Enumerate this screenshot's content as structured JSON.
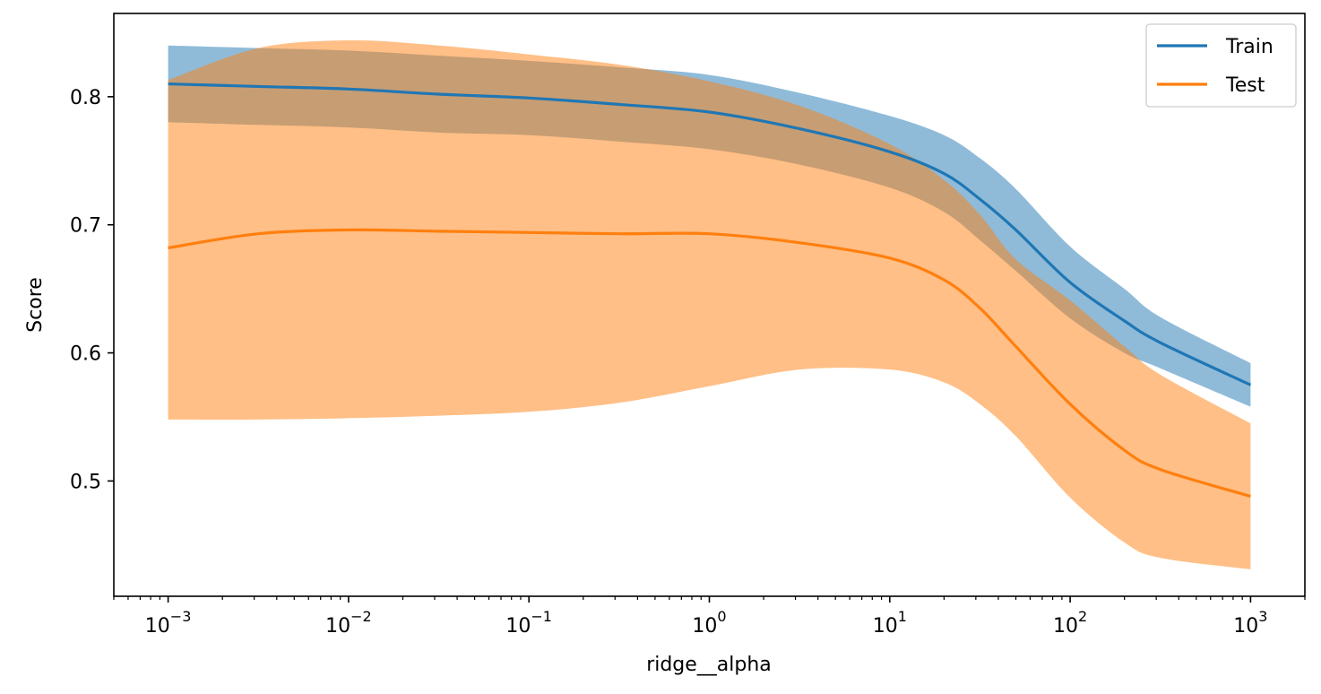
{
  "chart_data": {
    "type": "line",
    "title": "",
    "xlabel": "ridge__alpha",
    "ylabel": "Score",
    "xscale": "log",
    "xlim": [
      0.0005,
      2000
    ],
    "ylim": [
      0.41,
      0.865
    ],
    "x_ticks": [
      {
        "value": 0.001,
        "base": "10",
        "exp": "−3"
      },
      {
        "value": 0.01,
        "base": "10",
        "exp": "−2"
      },
      {
        "value": 0.1,
        "base": "10",
        "exp": "−1"
      },
      {
        "value": 1,
        "base": "10",
        "exp": "0"
      },
      {
        "value": 10,
        "base": "10",
        "exp": "1"
      },
      {
        "value": 100,
        "base": "10",
        "exp": "2"
      },
      {
        "value": 1000,
        "base": "10",
        "exp": "3"
      }
    ],
    "y_ticks": [
      {
        "value": 0.5,
        "label": "0.5"
      },
      {
        "value": 0.6,
        "label": "0.6"
      },
      {
        "value": 0.7,
        "label": "0.7"
      },
      {
        "value": 0.8,
        "label": "0.8"
      }
    ],
    "grid": false,
    "legend_position": "top-right",
    "x": [
      0.001,
      0.00316,
      0.01,
      0.0316,
      0.1,
      0.316,
      1,
      3.16,
      10,
      20,
      31.6,
      50,
      100,
      200,
      316,
      1000
    ],
    "series": [
      {
        "name": "Train",
        "color": "#1f77b4",
        "band_color": "#1f77b4",
        "band_opacity": 0.5,
        "values": [
          0.81,
          0.808,
          0.806,
          0.802,
          0.799,
          0.794,
          0.788,
          0.775,
          0.757,
          0.74,
          0.72,
          0.696,
          0.655,
          0.625,
          0.608,
          0.575
        ],
        "upper": [
          0.84,
          0.838,
          0.836,
          0.832,
          0.828,
          0.823,
          0.817,
          0.803,
          0.785,
          0.77,
          0.752,
          0.728,
          0.683,
          0.65,
          0.628,
          0.592
        ],
        "lower": [
          0.78,
          0.778,
          0.776,
          0.772,
          0.77,
          0.765,
          0.759,
          0.747,
          0.729,
          0.71,
          0.688,
          0.664,
          0.627,
          0.6,
          0.588,
          0.558
        ]
      },
      {
        "name": "Test",
        "color": "#ff7f0e",
        "band_color": "#ff7f0e",
        "band_opacity": 0.5,
        "values": [
          0.682,
          0.693,
          0.696,
          0.695,
          0.694,
          0.693,
          0.693,
          0.686,
          0.674,
          0.657,
          0.635,
          0.605,
          0.56,
          0.524,
          0.509,
          0.488
        ],
        "upper": [
          0.813,
          0.838,
          0.844,
          0.84,
          0.833,
          0.825,
          0.812,
          0.793,
          0.763,
          0.735,
          0.708,
          0.673,
          0.641,
          0.605,
          0.583,
          0.545
        ],
        "lower": [
          0.548,
          0.548,
          0.549,
          0.551,
          0.554,
          0.561,
          0.574,
          0.587,
          0.587,
          0.577,
          0.56,
          0.535,
          0.487,
          0.452,
          0.44,
          0.431
        ]
      }
    ]
  }
}
